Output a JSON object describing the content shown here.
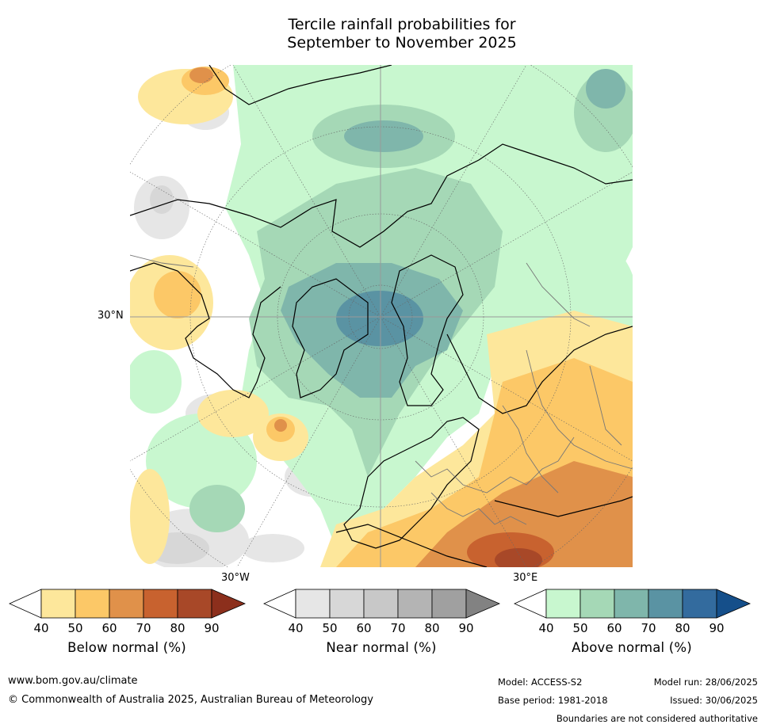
{
  "title_line1": "Tercile rainfall probabilities for",
  "title_line2": "September to November 2025",
  "map": {
    "lat_label": "30°N",
    "lon_label_left": "30°W",
    "lon_label_right": "30°E"
  },
  "colorbars": [
    {
      "title": "Below normal (%)",
      "ticks": [
        "40",
        "50",
        "60",
        "70",
        "80",
        "90"
      ],
      "colors": [
        "#ffffff",
        "#fde79b",
        "#fcc867",
        "#e0914a",
        "#c8622f",
        "#a84828",
        "#8c2f1c"
      ]
    },
    {
      "title": "Near normal (%)",
      "ticks": [
        "40",
        "50",
        "60",
        "70",
        "80",
        "90"
      ],
      "colors": [
        "#ffffff",
        "#e6e6e6",
        "#d7d7d7",
        "#c8c8c8",
        "#b4b4b4",
        "#a0a0a0",
        "#828282"
      ]
    },
    {
      "title": "Above normal (%)",
      "ticks": [
        "40",
        "50",
        "60",
        "70",
        "80",
        "90"
      ],
      "colors": [
        "#ffffff",
        "#c8f7cf",
        "#a5d8b6",
        "#7fb6ab",
        "#5a93a3",
        "#336b9e",
        "#154f8a"
      ]
    }
  ],
  "footer": {
    "website": "www.bom.gov.au/climate",
    "copyright": "© Commonwealth of Australia 2025, Australian Bureau of Meteorology",
    "model": "Model: ACCESS-S2",
    "base_period": "Base period: 1981-2018",
    "model_run": "Model run: 28/06/2025",
    "issued": "Issued: 30/06/2025",
    "boundaries_note": "Boundaries are not considered authoritative"
  }
}
